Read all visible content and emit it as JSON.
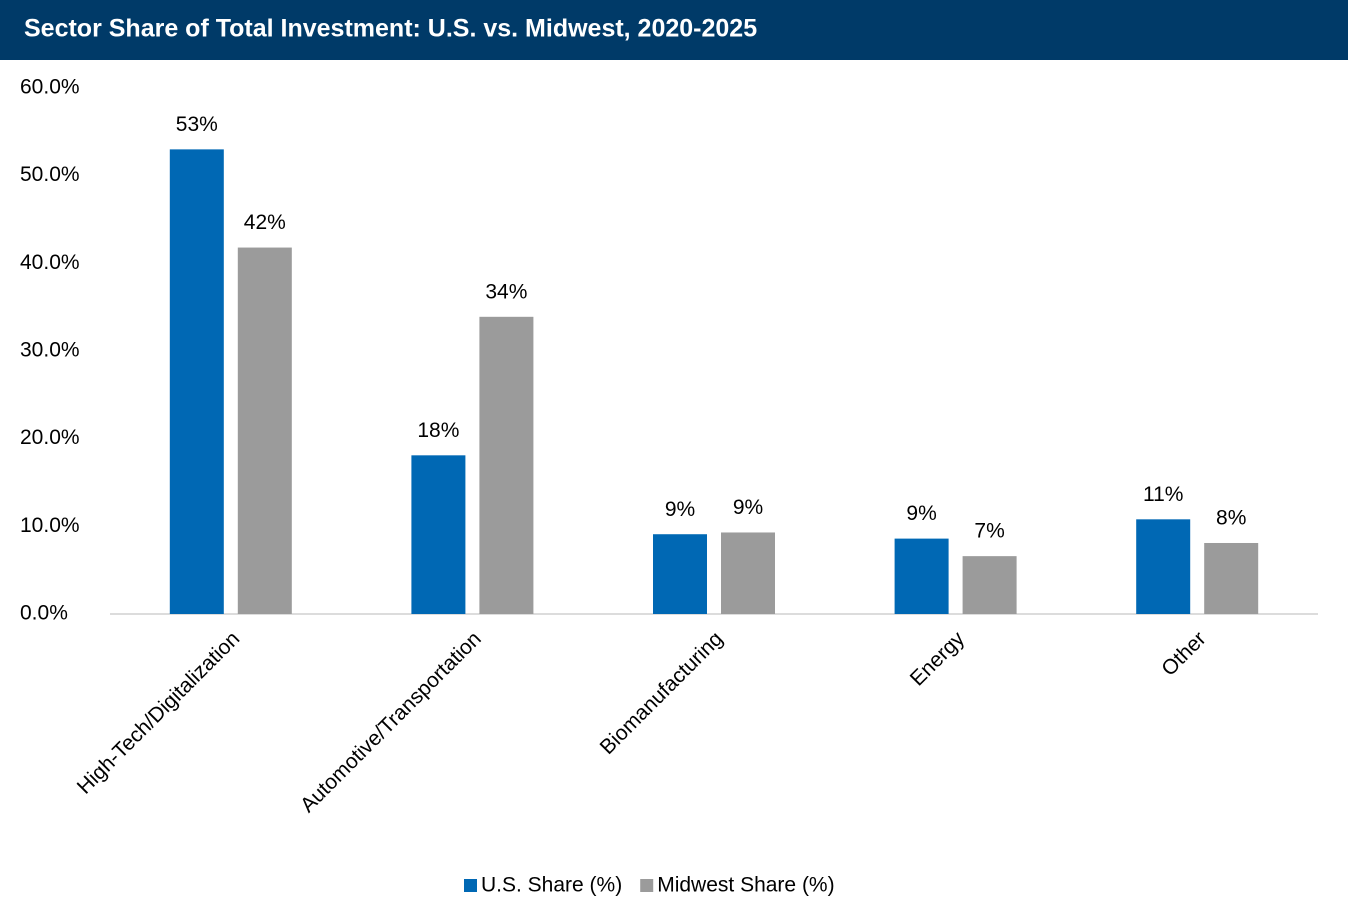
{
  "chart_data": {
    "type": "bar",
    "title": "Sector Share of Total Investment: U.S. vs. Midwest, 2020-2025",
    "categories": [
      "High-Tech/Digitalization",
      "Automotive/Transportation",
      "Biomanufacturing",
      "Energy",
      "Other"
    ],
    "series": [
      {
        "name": "U.S. Share (%)",
        "color": "#0068b4",
        "values": [
          53.0,
          18.1,
          9.1,
          8.6,
          10.8
        ],
        "value_labels": [
          "53%",
          "18%",
          "9%",
          "9%",
          "11%"
        ]
      },
      {
        "name": "Midwest Share (%)",
        "color": "#9b9b9b",
        "values": [
          41.8,
          33.9,
          9.3,
          6.6,
          8.1
        ],
        "value_labels": [
          "42%",
          "34%",
          "9%",
          "7%",
          "8%"
        ]
      }
    ],
    "ylim": [
      0,
      60
    ],
    "yticks": [
      {
        "value": 0,
        "label": "0.0%"
      },
      {
        "value": 10,
        "label": "10.0%"
      },
      {
        "value": 20,
        "label": "20.0%"
      },
      {
        "value": 30,
        "label": "30.0%"
      },
      {
        "value": 40,
        "label": "40.0%"
      },
      {
        "value": 50,
        "label": "50.0%"
      },
      {
        "value": 60,
        "label": "60.0%"
      }
    ],
    "grid": false,
    "legend": "bottom"
  }
}
